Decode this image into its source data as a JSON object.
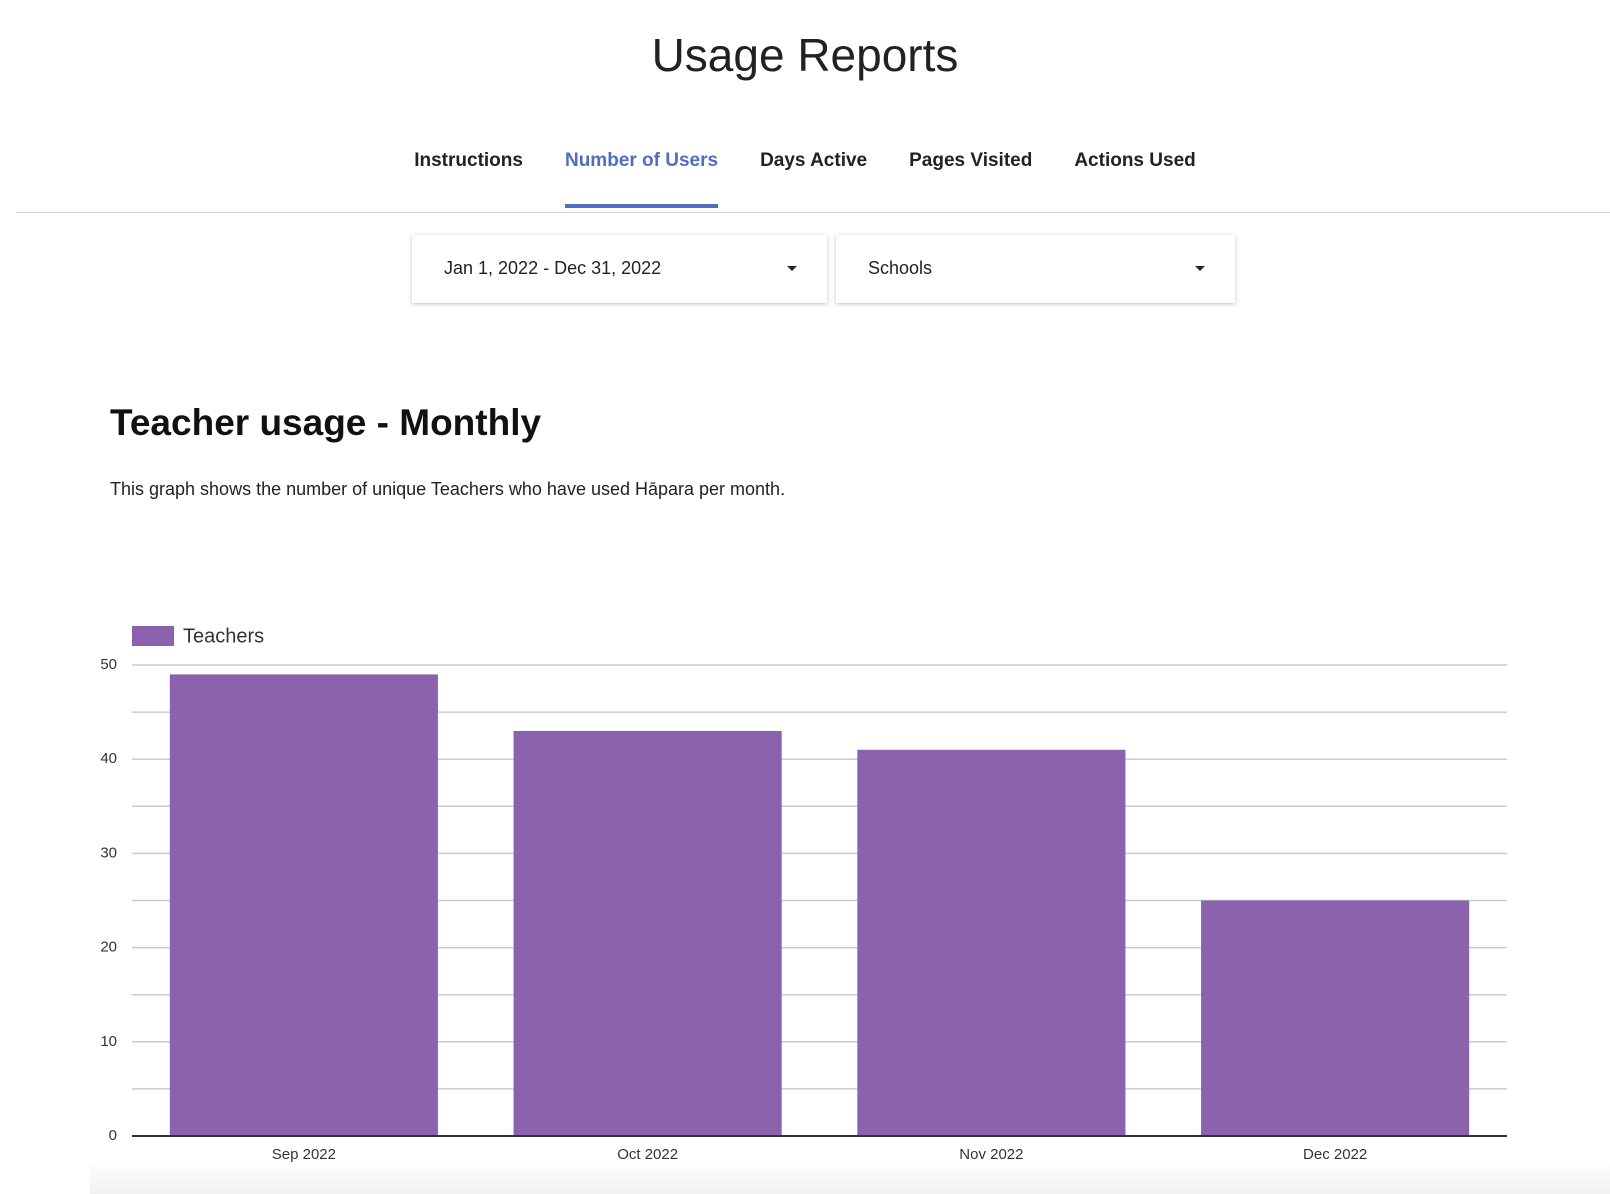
{
  "header": {
    "title": "Usage Reports"
  },
  "tabs": [
    {
      "label": "Instructions",
      "active": false
    },
    {
      "label": "Number of Users",
      "active": true
    },
    {
      "label": "Days Active",
      "active": false
    },
    {
      "label": "Pages Visited",
      "active": false
    },
    {
      "label": "Actions Used",
      "active": false
    }
  ],
  "filters": [
    "Jan 1, 2022 - Dec 31, 2022",
    "Schools"
  ],
  "section": {
    "title": "Teacher usage - Monthly",
    "description": "This graph shows the number of unique Teachers who have used Hāpara per month."
  },
  "chart_data": {
    "type": "bar",
    "categories": [
      "Sep 2022",
      "Oct 2022",
      "Nov 2022",
      "Dec 2022"
    ],
    "series": [
      {
        "name": "Teachers",
        "color": "#8b62ad",
        "values": [
          49,
          43,
          41,
          25
        ]
      }
    ],
    "ylim": [
      0,
      50
    ],
    "yticks": [
      0,
      10,
      20,
      30,
      40,
      50
    ],
    "minor_yticks": [
      5,
      15,
      25,
      35,
      45
    ],
    "grid": true,
    "legend": "top-left"
  }
}
